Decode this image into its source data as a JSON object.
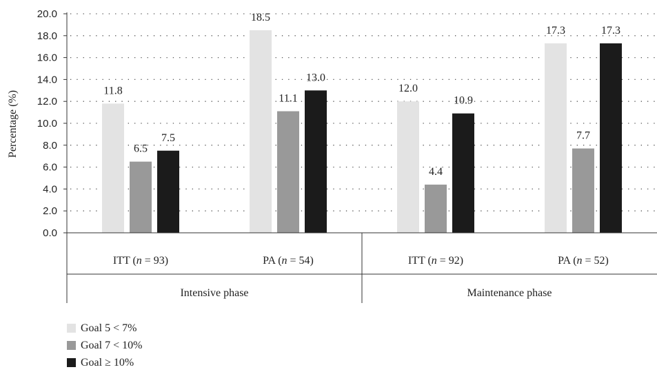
{
  "chart_data": {
    "type": "bar",
    "ylabel": "Percentage (%)",
    "ylim": [
      0,
      20
    ],
    "yticks": [
      "0.0",
      "2.0",
      "4.0",
      "6.0",
      "8.0",
      "10.0",
      "12.0",
      "14.0",
      "16.0",
      "18.0",
      "20.0"
    ],
    "grid": "dotted horizontal",
    "categories": [
      {
        "pre": "ITT (",
        "italic": "n",
        "post": " = 93)",
        "group": "Intensive phase"
      },
      {
        "pre": "PA (",
        "italic": "n",
        "post": " = 54)",
        "group": "Intensive phase"
      },
      {
        "pre": "ITT (",
        "italic": "n",
        "post": " = 92)",
        "group": "Maintenance phase"
      },
      {
        "pre": "PA (",
        "italic": "n",
        "post": " = 52)",
        "group": "Maintenance phase"
      }
    ],
    "groups": [
      "Intensive phase",
      "Maintenance phase"
    ],
    "series": [
      {
        "name": "Goal 5 < 7%",
        "color": "#e3e3e3",
        "values": [
          11.8,
          18.5,
          12.0,
          17.3
        ],
        "labels": [
          "11.8",
          "18.5",
          "12.0",
          "17.3"
        ]
      },
      {
        "name": "Goal 7 < 10%",
        "color": "#999999",
        "values": [
          6.5,
          11.1,
          4.4,
          7.7
        ],
        "labels": [
          "6.5",
          "11.1",
          "4.4",
          "7.7"
        ]
      },
      {
        "name": "Goal ≥ 10%",
        "color": "#1b1b1b",
        "values": [
          7.5,
          13.0,
          10.9,
          17.3
        ],
        "labels": [
          "7.5",
          "13.0",
          "10.9",
          "17.3"
        ]
      }
    ],
    "legend_position": "bottom-left"
  }
}
